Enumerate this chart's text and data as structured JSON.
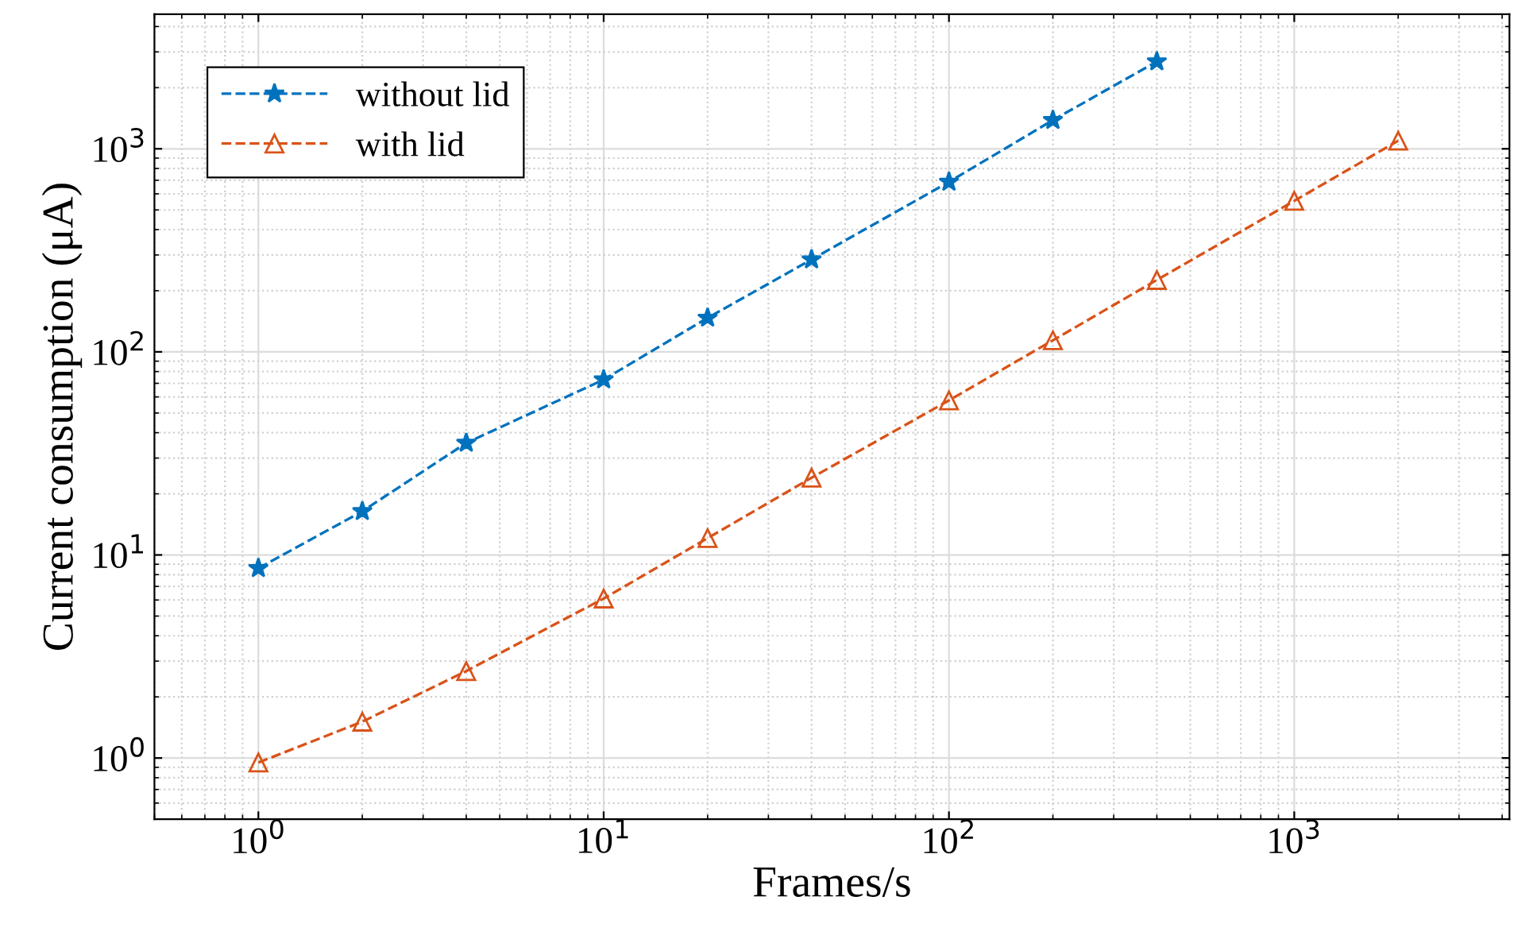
{
  "chart_data": {
    "type": "line",
    "xlabel": "Frames/s",
    "ylabel": "Current consumption (μA)",
    "log": "xy",
    "grid": true,
    "legend": "top left",
    "line_style": "dashed",
    "xlim": [
      0.5,
      4200
    ],
    "ylim": [
      0.5,
      4600
    ],
    "xticks": [
      {
        "value": 1,
        "label": "10$^{0}$"
      },
      {
        "value": 10,
        "label": "10$^{1}$"
      },
      {
        "value": 100,
        "label": "10$^{2}$"
      },
      {
        "value": 1000,
        "label": "10$^{3}$"
      }
    ],
    "yticks": [
      {
        "value": 1,
        "label": "10$^{0}$"
      },
      {
        "value": 10,
        "label": "10$^{1}$"
      },
      {
        "value": 100,
        "label": "10$^{2}$"
      },
      {
        "value": 1000,
        "label": "10$^{3}$"
      }
    ],
    "series": [
      {
        "name": "without lid",
        "color": "#0072bd",
        "marker": "star",
        "x": [
          1,
          2,
          4,
          10,
          20,
          40,
          100,
          200,
          400
        ],
        "values": [
          8.6,
          16.4,
          35.6,
          73,
          147,
          285,
          687,
          1384,
          2690
        ]
      },
      {
        "name": "with lid",
        "color": "#d95319",
        "marker": "triangle",
        "x": [
          1,
          2,
          4,
          10,
          20,
          40,
          100,
          200,
          400,
          1000,
          2000
        ],
        "values": [
          0.95,
          1.51,
          2.68,
          6.1,
          12.1,
          24,
          57.7,
          114,
          226,
          554,
          1096
        ]
      }
    ]
  }
}
